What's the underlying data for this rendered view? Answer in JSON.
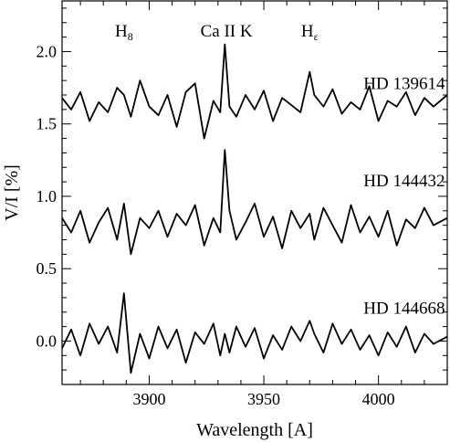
{
  "chart_data": {
    "type": "line",
    "xlabel": "Wavelength [A]",
    "ylabel": "V/I [%]",
    "xlim": [
      3862,
      4030
    ],
    "ylim": [
      -0.3,
      2.35
    ],
    "xticks": [
      3900,
      3950,
      4000
    ],
    "yticks": [
      0.0,
      0.5,
      1.0,
      1.5,
      2.0
    ],
    "xtick_labels": [
      "3900",
      "3950",
      "4000"
    ],
    "ytick_labels": [
      "0.0",
      "0.5",
      "1.0",
      "1.5",
      "2.0"
    ],
    "grid": false,
    "line_annotations": [
      {
        "base": "H",
        "sub": "8",
        "x": 3889
      },
      {
        "base": "Ca II K",
        "sub": "",
        "x": 3933.7
      },
      {
        "base": "H",
        "sub": "ε",
        "x": 3970
      }
    ],
    "series": [
      {
        "name": "HD 139614",
        "label_at": [
          4029,
          1.74
        ],
        "x": [
          3862,
          3866,
          3870,
          3874,
          3878,
          3882,
          3886,
          3889,
          3892,
          3896,
          3900,
          3904,
          3908,
          3912,
          3916,
          3920,
          3924,
          3928,
          3931,
          3933,
          3935,
          3938,
          3942,
          3946,
          3950,
          3954,
          3958,
          3962,
          3966,
          3970,
          3972,
          3976,
          3980,
          3984,
          3988,
          3992,
          3996,
          4000,
          4004,
          4008,
          4012,
          4016,
          4020,
          4024,
          4030
        ],
        "values": [
          1.68,
          1.6,
          1.72,
          1.52,
          1.65,
          1.58,
          1.75,
          1.7,
          1.55,
          1.8,
          1.62,
          1.56,
          1.7,
          1.48,
          1.72,
          1.78,
          1.4,
          1.66,
          1.58,
          2.05,
          1.62,
          1.55,
          1.7,
          1.6,
          1.73,
          1.52,
          1.68,
          1.63,
          1.58,
          1.86,
          1.7,
          1.62,
          1.74,
          1.57,
          1.65,
          1.6,
          1.76,
          1.52,
          1.66,
          1.62,
          1.72,
          1.56,
          1.68,
          1.62,
          1.7
        ]
      },
      {
        "name": "HD 144432",
        "label_at": [
          4029,
          1.07
        ],
        "x": [
          3862,
          3866,
          3870,
          3874,
          3878,
          3882,
          3886,
          3889,
          3892,
          3896,
          3900,
          3904,
          3908,
          3912,
          3916,
          3920,
          3924,
          3928,
          3931,
          3933,
          3935,
          3938,
          3942,
          3946,
          3950,
          3954,
          3958,
          3962,
          3966,
          3970,
          3972,
          3976,
          3980,
          3984,
          3988,
          3992,
          3996,
          4000,
          4004,
          4008,
          4012,
          4016,
          4020,
          4024,
          4030
        ],
        "values": [
          0.85,
          0.75,
          0.9,
          0.68,
          0.82,
          0.92,
          0.7,
          0.95,
          0.6,
          0.85,
          0.78,
          0.9,
          0.72,
          0.88,
          0.8,
          0.94,
          0.66,
          0.85,
          0.75,
          1.32,
          0.9,
          0.7,
          0.82,
          0.95,
          0.72,
          0.86,
          0.64,
          0.9,
          0.78,
          0.88,
          0.7,
          0.92,
          0.8,
          0.68,
          0.94,
          0.75,
          0.86,
          0.72,
          0.9,
          0.66,
          0.84,
          0.78,
          0.92,
          0.8,
          0.85
        ]
      },
      {
        "name": "HD 144668",
        "label_at": [
          4029,
          0.19
        ],
        "x": [
          3862,
          3866,
          3870,
          3874,
          3878,
          3882,
          3886,
          3889,
          3892,
          3896,
          3900,
          3904,
          3908,
          3912,
          3916,
          3920,
          3924,
          3928,
          3931,
          3933,
          3935,
          3938,
          3942,
          3946,
          3950,
          3954,
          3958,
          3962,
          3966,
          3970,
          3972,
          3976,
          3980,
          3984,
          3988,
          3992,
          3996,
          4000,
          4004,
          4008,
          4012,
          4016,
          4020,
          4024,
          4030
        ],
        "values": [
          -0.05,
          0.08,
          -0.1,
          0.12,
          -0.02,
          0.1,
          -0.08,
          0.33,
          -0.22,
          0.05,
          -0.12,
          0.1,
          -0.05,
          0.08,
          -0.15,
          0.06,
          -0.02,
          0.12,
          -0.1,
          0.05,
          -0.08,
          0.1,
          -0.04,
          0.09,
          -0.12,
          0.04,
          -0.06,
          0.1,
          0.0,
          0.14,
          0.05,
          -0.08,
          0.12,
          -0.02,
          0.08,
          -0.06,
          0.04,
          -0.1,
          0.06,
          -0.04,
          0.1,
          -0.08,
          0.05,
          -0.02,
          0.03
        ]
      }
    ]
  }
}
